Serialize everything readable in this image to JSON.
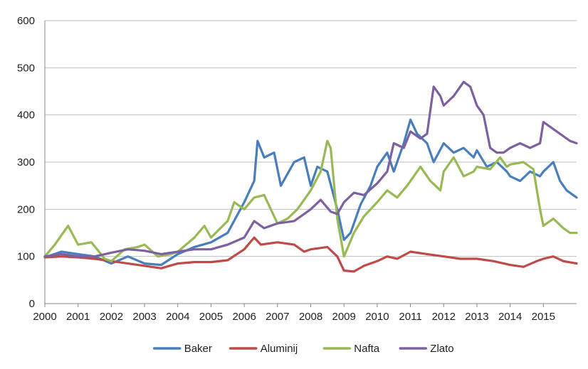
{
  "chart_data": {
    "type": "line",
    "title": "",
    "xlabel": "",
    "ylabel": "",
    "xlim": [
      2000,
      2016
    ],
    "ylim": [
      0,
      600
    ],
    "x_ticks": [
      "2000",
      "2001",
      "2002",
      "2003",
      "2004",
      "2005",
      "2006",
      "2007",
      "2008",
      "2009",
      "2010",
      "2011",
      "2012",
      "2013",
      "2014",
      "2015"
    ],
    "y_ticks": [
      "0",
      "100",
      "200",
      "300",
      "400",
      "500",
      "600"
    ],
    "grid": "horizontal",
    "legend": "bottom",
    "series": [
      {
        "name": "Baker",
        "color": "#4a7ebb",
        "points": [
          [
            2000.0,
            98
          ],
          [
            2000.5,
            110
          ],
          [
            2001.0,
            105
          ],
          [
            2001.5,
            100
          ],
          [
            2002.0,
            85
          ],
          [
            2002.5,
            100
          ],
          [
            2003.0,
            85
          ],
          [
            2003.5,
            82
          ],
          [
            2004.0,
            105
          ],
          [
            2004.5,
            120
          ],
          [
            2005.0,
            130
          ],
          [
            2005.5,
            150
          ],
          [
            2006.0,
            215
          ],
          [
            2006.3,
            260
          ],
          [
            2006.4,
            345
          ],
          [
            2006.6,
            310
          ],
          [
            2006.9,
            320
          ],
          [
            2007.1,
            250
          ],
          [
            2007.5,
            300
          ],
          [
            2007.8,
            310
          ],
          [
            2008.0,
            250
          ],
          [
            2008.2,
            290
          ],
          [
            2008.5,
            280
          ],
          [
            2008.8,
            200
          ],
          [
            2009.0,
            135
          ],
          [
            2009.2,
            150
          ],
          [
            2009.5,
            210
          ],
          [
            2009.8,
            250
          ],
          [
            2010.0,
            290
          ],
          [
            2010.3,
            320
          ],
          [
            2010.5,
            280
          ],
          [
            2010.8,
            340
          ],
          [
            2011.0,
            390
          ],
          [
            2011.2,
            360
          ],
          [
            2011.5,
            340
          ],
          [
            2011.7,
            300
          ],
          [
            2012.0,
            340
          ],
          [
            2012.3,
            320
          ],
          [
            2012.6,
            330
          ],
          [
            2012.9,
            310
          ],
          [
            2013.0,
            325
          ],
          [
            2013.3,
            290
          ],
          [
            2013.6,
            300
          ],
          [
            2013.9,
            280
          ],
          [
            2014.0,
            270
          ],
          [
            2014.3,
            260
          ],
          [
            2014.6,
            280
          ],
          [
            2014.9,
            270
          ],
          [
            2015.0,
            280
          ],
          [
            2015.3,
            300
          ],
          [
            2015.5,
            260
          ],
          [
            2015.7,
            240
          ],
          [
            2016.0,
            225
          ]
        ]
      },
      {
        "name": "Aluminij",
        "color": "#be4b48",
        "points": [
          [
            2000.0,
            98
          ],
          [
            2000.5,
            100
          ],
          [
            2001.0,
            98
          ],
          [
            2001.5,
            95
          ],
          [
            2002.0,
            90
          ],
          [
            2002.5,
            85
          ],
          [
            2003.0,
            80
          ],
          [
            2003.5,
            75
          ],
          [
            2004.0,
            85
          ],
          [
            2004.5,
            88
          ],
          [
            2005.0,
            88
          ],
          [
            2005.5,
            92
          ],
          [
            2006.0,
            115
          ],
          [
            2006.3,
            140
          ],
          [
            2006.5,
            125
          ],
          [
            2007.0,
            130
          ],
          [
            2007.5,
            125
          ],
          [
            2007.8,
            110
          ],
          [
            2008.0,
            115
          ],
          [
            2008.5,
            120
          ],
          [
            2008.8,
            100
          ],
          [
            2009.0,
            70
          ],
          [
            2009.3,
            68
          ],
          [
            2009.6,
            80
          ],
          [
            2010.0,
            90
          ],
          [
            2010.3,
            100
          ],
          [
            2010.6,
            95
          ],
          [
            2011.0,
            110
          ],
          [
            2011.5,
            105
          ],
          [
            2012.0,
            100
          ],
          [
            2012.5,
            95
          ],
          [
            2013.0,
            95
          ],
          [
            2013.5,
            90
          ],
          [
            2014.0,
            82
          ],
          [
            2014.4,
            78
          ],
          [
            2014.8,
            90
          ],
          [
            2015.0,
            95
          ],
          [
            2015.3,
            100
          ],
          [
            2015.6,
            90
          ],
          [
            2016.0,
            85
          ]
        ]
      },
      {
        "name": "Nafta",
        "color": "#98b954",
        "points": [
          [
            2000.0,
            100
          ],
          [
            2000.3,
            125
          ],
          [
            2000.7,
            165
          ],
          [
            2001.0,
            125
          ],
          [
            2001.4,
            130
          ],
          [
            2001.8,
            95
          ],
          [
            2002.0,
            90
          ],
          [
            2002.4,
            115
          ],
          [
            2002.8,
            120
          ],
          [
            2003.0,
            125
          ],
          [
            2003.4,
            100
          ],
          [
            2003.8,
            105
          ],
          [
            2004.0,
            110
          ],
          [
            2004.5,
            140
          ],
          [
            2004.8,
            165
          ],
          [
            2005.0,
            140
          ],
          [
            2005.5,
            175
          ],
          [
            2005.7,
            215
          ],
          [
            2006.0,
            200
          ],
          [
            2006.3,
            225
          ],
          [
            2006.6,
            230
          ],
          [
            2006.9,
            185
          ],
          [
            2007.0,
            170
          ],
          [
            2007.3,
            180
          ],
          [
            2007.6,
            200
          ],
          [
            2008.0,
            240
          ],
          [
            2008.3,
            280
          ],
          [
            2008.5,
            345
          ],
          [
            2008.6,
            330
          ],
          [
            2008.8,
            180
          ],
          [
            2009.0,
            100
          ],
          [
            2009.3,
            150
          ],
          [
            2009.6,
            185
          ],
          [
            2010.0,
            215
          ],
          [
            2010.3,
            240
          ],
          [
            2010.6,
            225
          ],
          [
            2010.9,
            250
          ],
          [
            2011.0,
            260
          ],
          [
            2011.3,
            290
          ],
          [
            2011.6,
            260
          ],
          [
            2011.9,
            240
          ],
          [
            2012.0,
            280
          ],
          [
            2012.3,
            310
          ],
          [
            2012.6,
            270
          ],
          [
            2012.9,
            280
          ],
          [
            2013.0,
            290
          ],
          [
            2013.4,
            285
          ],
          [
            2013.7,
            310
          ],
          [
            2013.9,
            290
          ],
          [
            2014.0,
            295
          ],
          [
            2014.4,
            300
          ],
          [
            2014.7,
            285
          ],
          [
            2014.9,
            200
          ],
          [
            2015.0,
            165
          ],
          [
            2015.3,
            180
          ],
          [
            2015.6,
            160
          ],
          [
            2015.8,
            150
          ],
          [
            2016.0,
            150
          ]
        ]
      },
      {
        "name": "Zlato",
        "color": "#7d60a0",
        "points": [
          [
            2000.0,
            100
          ],
          [
            2000.5,
            105
          ],
          [
            2001.0,
            100
          ],
          [
            2001.5,
            100
          ],
          [
            2002.0,
            108
          ],
          [
            2002.5,
            115
          ],
          [
            2003.0,
            112
          ],
          [
            2003.5,
            105
          ],
          [
            2004.0,
            110
          ],
          [
            2004.5,
            115
          ],
          [
            2005.0,
            115
          ],
          [
            2005.5,
            125
          ],
          [
            2006.0,
            140
          ],
          [
            2006.3,
            175
          ],
          [
            2006.6,
            160
          ],
          [
            2007.0,
            170
          ],
          [
            2007.5,
            175
          ],
          [
            2007.8,
            190
          ],
          [
            2008.0,
            200
          ],
          [
            2008.3,
            220
          ],
          [
            2008.6,
            195
          ],
          [
            2008.8,
            190
          ],
          [
            2009.0,
            215
          ],
          [
            2009.3,
            235
          ],
          [
            2009.6,
            230
          ],
          [
            2010.0,
            255
          ],
          [
            2010.3,
            280
          ],
          [
            2010.5,
            340
          ],
          [
            2010.8,
            330
          ],
          [
            2011.0,
            365
          ],
          [
            2011.3,
            350
          ],
          [
            2011.5,
            360
          ],
          [
            2011.7,
            460
          ],
          [
            2011.9,
            440
          ],
          [
            2012.0,
            420
          ],
          [
            2012.3,
            440
          ],
          [
            2012.6,
            470
          ],
          [
            2012.8,
            460
          ],
          [
            2013.0,
            420
          ],
          [
            2013.2,
            400
          ],
          [
            2013.4,
            330
          ],
          [
            2013.6,
            320
          ],
          [
            2013.8,
            320
          ],
          [
            2014.0,
            330
          ],
          [
            2014.3,
            340
          ],
          [
            2014.6,
            330
          ],
          [
            2014.9,
            340
          ],
          [
            2015.0,
            385
          ],
          [
            2015.3,
            370
          ],
          [
            2015.6,
            355
          ],
          [
            2015.8,
            345
          ],
          [
            2016.0,
            340
          ]
        ]
      }
    ]
  }
}
